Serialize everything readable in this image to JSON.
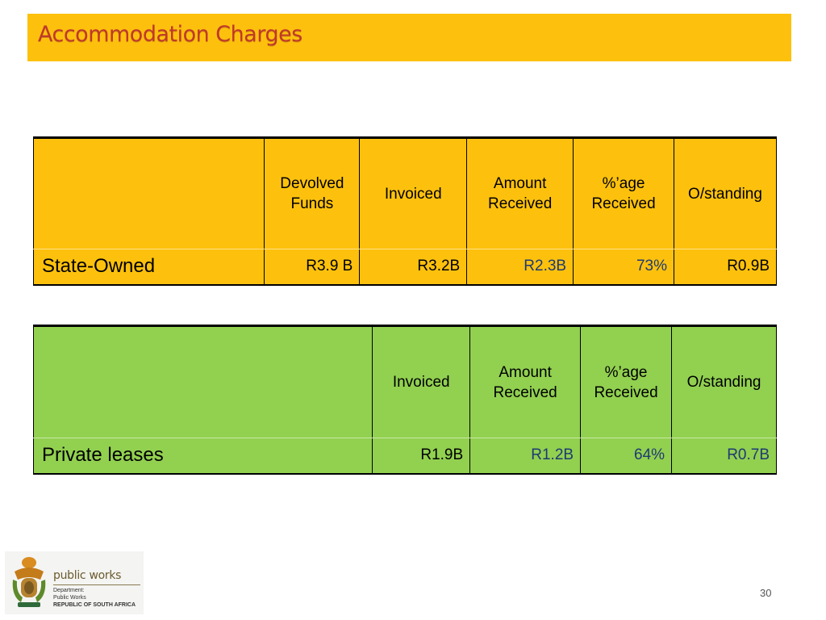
{
  "title": "Accommodation Charges",
  "state_table": {
    "headers": [
      "",
      "Devolved Funds",
      "Invoiced",
      "Amount Received",
      "%’age Received",
      "O/standing"
    ],
    "row_label": "State-Owned",
    "values": [
      "R3.9 B",
      "R3.2B",
      "R2.3B",
      "73%",
      "R0.9B"
    ],
    "fill_color": "#fdc10d"
  },
  "private_table": {
    "headers": [
      "",
      "Invoiced",
      "Amount Received",
      "%’age Received",
      "O/standing"
    ],
    "row_label": "Private leases",
    "values": [
      "R1.9B",
      "R1.2B",
      "64%",
      "R0.7B"
    ],
    "fill_color": "#92d050"
  },
  "logo": {
    "icon": "coat-of-arms-icon",
    "name": "public works",
    "line1": "Department:",
    "line2": "Public Works",
    "line3": "REPUBLIC OF SOUTH AFRICA"
  },
  "page_number": "30"
}
